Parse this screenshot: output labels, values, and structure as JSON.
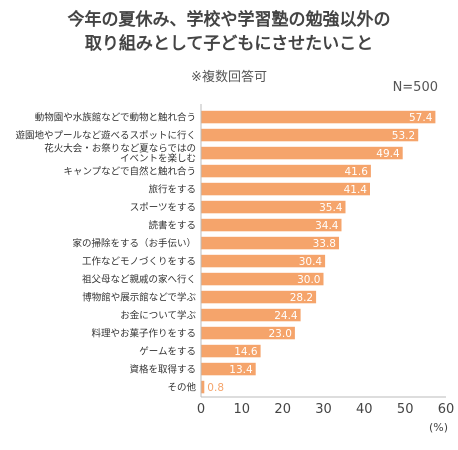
{
  "title_line1": "今年の夏休み、学校や学習塾の勉強以外の",
  "title_line2": "取り組みとして子どもにさせたいこと",
  "subtitle": "※複数回答可",
  "sample_size": "N=500",
  "chart_data": {
    "type": "bar",
    "orientation": "horizontal",
    "bar_color": "#f5a46b",
    "label_color": "#ffffff",
    "axis_color": "#bbbbbb",
    "grid": false,
    "xlim": [
      0,
      60
    ],
    "x_ticks": [
      "0",
      "10",
      "20",
      "30",
      "40",
      "50",
      "60"
    ],
    "x_unit": "(%)",
    "categories": [
      [
        "動物園や水族館などで動物と触れ合う"
      ],
      [
        "遊園地やプールなど遊べるスポットに行く"
      ],
      [
        "花火大会・お祭りなど夏ならではの",
        "イベントを楽しむ"
      ],
      [
        "キャンプなどで自然と触れ合う"
      ],
      [
        "旅行をする"
      ],
      [
        "スポーツをする"
      ],
      [
        "読書をする"
      ],
      [
        "家の掃除をする（お手伝い）"
      ],
      [
        "工作などモノづくりをする"
      ],
      [
        "祖父母など親戚の家へ行く"
      ],
      [
        "博物館や展示館などで学ぶ"
      ],
      [
        "お金について学ぶ"
      ],
      [
        "料理やお菓子作りをする"
      ],
      [
        "ゲームをする"
      ],
      [
        "資格を取得する"
      ],
      [
        "その他"
      ]
    ],
    "values": [
      57.4,
      53.2,
      49.4,
      41.6,
      41.4,
      35.4,
      34.4,
      33.8,
      30.4,
      30.0,
      28.2,
      24.4,
      23.0,
      14.6,
      13.4,
      0.8
    ],
    "value_labels": [
      "57.4",
      "53.2",
      "49.4",
      "41.6",
      "41.4",
      "35.4",
      "34.4",
      "33.8",
      "30.4",
      "30.0",
      "28.2",
      "24.4",
      "23.0",
      "14.6",
      "13.4",
      "0.8"
    ]
  }
}
